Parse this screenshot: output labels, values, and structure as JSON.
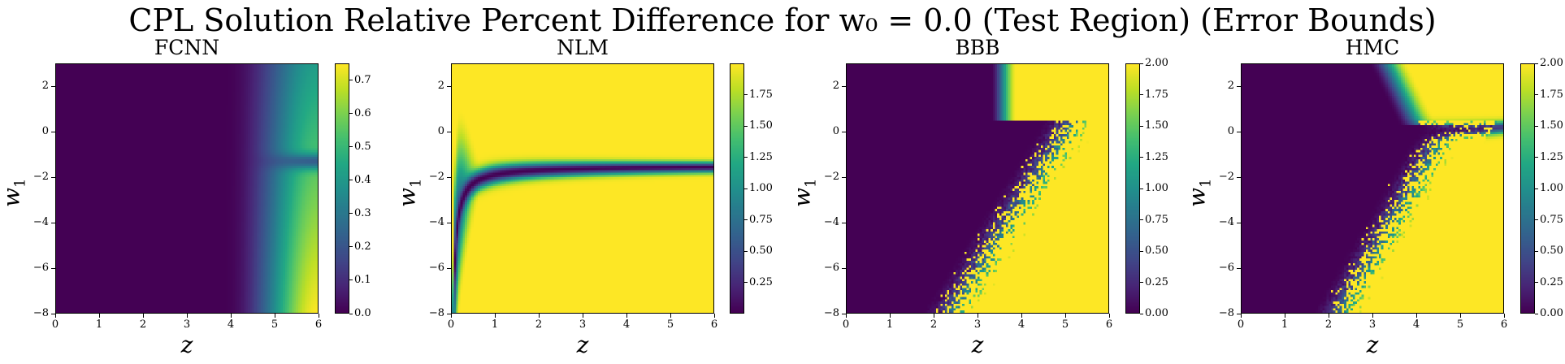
{
  "figure": {
    "title": "CPL Solution Relative Percent Difference for w₀ = 0.0 (Test Region) (Error Bounds)"
  },
  "colormap": "viridis",
  "chart_data": [
    {
      "type": "heatmap",
      "title": "FCNN",
      "xlabel": "z",
      "ylabel": "w",
      "ylabel_sub": "1",
      "xlim": [
        0,
        6
      ],
      "ylim": [
        -8,
        3
      ],
      "xticks": [
        "0",
        "1",
        "2",
        "3",
        "4",
        "5",
        "6"
      ],
      "yticks": [
        "2",
        "0",
        "−2",
        "−4",
        "−6",
        "−8"
      ],
      "colorbar": {
        "vmin": 0.0,
        "vmax": 0.75,
        "ticks": [
          "0.0",
          "0.1",
          "0.2",
          "0.3",
          "0.4",
          "0.5",
          "0.6",
          "0.7"
        ]
      }
    },
    {
      "type": "heatmap",
      "title": "NLM",
      "xlabel": "z",
      "ylabel": "w",
      "ylabel_sub": "1",
      "xlim": [
        0,
        6
      ],
      "ylim": [
        -8,
        3
      ],
      "xticks": [
        "0",
        "1",
        "2",
        "3",
        "4",
        "5",
        "6"
      ],
      "yticks": [
        "2",
        "0",
        "−2",
        "−4",
        "−6",
        "−8"
      ],
      "colorbar": {
        "vmin": 0.0,
        "vmax": 2.0,
        "ticks": [
          "0.25",
          "0.50",
          "0.75",
          "1.00",
          "1.25",
          "1.50",
          "1.75"
        ]
      }
    },
    {
      "type": "heatmap",
      "title": "BBB",
      "xlabel": "z",
      "ylabel": "w",
      "ylabel_sub": "1",
      "xlim": [
        0,
        6
      ],
      "ylim": [
        -8,
        3
      ],
      "xticks": [
        "0",
        "1",
        "2",
        "3",
        "4",
        "5",
        "6"
      ],
      "yticks": [
        "2",
        "0",
        "−2",
        "−4",
        "−6",
        "−8"
      ],
      "colorbar": {
        "vmin": 0.0,
        "vmax": 2.0,
        "ticks": [
          "0.00",
          "0.25",
          "0.50",
          "0.75",
          "1.00",
          "1.25",
          "1.50",
          "1.75",
          "2.00"
        ]
      }
    },
    {
      "type": "heatmap",
      "title": "HMC",
      "xlabel": "z",
      "ylabel": "w",
      "ylabel_sub": "1",
      "xlim": [
        0,
        6
      ],
      "ylim": [
        -8,
        3
      ],
      "xticks": [
        "0",
        "1",
        "2",
        "3",
        "4",
        "5",
        "6"
      ],
      "yticks": [
        "2",
        "0",
        "−2",
        "−4",
        "−6",
        "−8"
      ],
      "colorbar": {
        "vmin": 0.0,
        "vmax": 2.0,
        "ticks": [
          "0.00",
          "0.25",
          "0.50",
          "0.75",
          "1.00",
          "1.25",
          "1.50",
          "1.75",
          "2.00"
        ]
      }
    }
  ]
}
